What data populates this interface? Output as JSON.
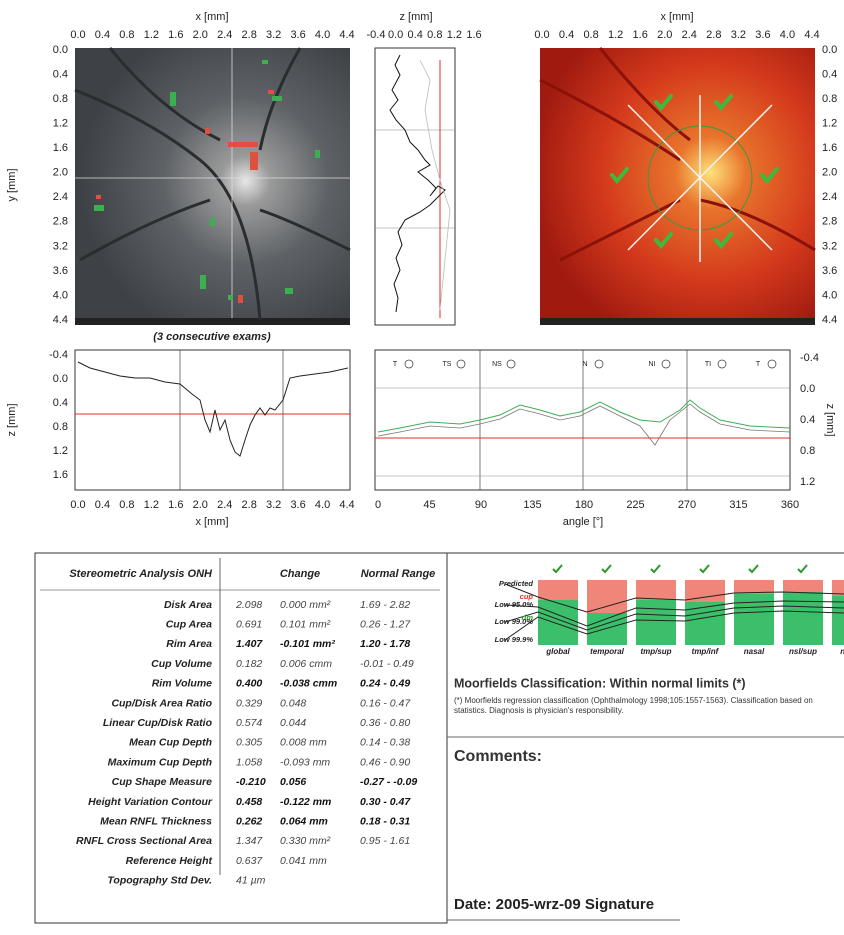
{
  "fundus_panels": {
    "x_axis_label": "x [mm]",
    "z_axis_label": "z [mm]",
    "y_axis_label": "y [mm]",
    "x_ticks": [
      "0.0",
      "0.4",
      "0.8",
      "1.2",
      "1.6",
      "2.0",
      "2.4",
      "2.8",
      "3.2",
      "3.6",
      "4.0",
      "4.4"
    ],
    "z_ticks": [
      "-0.4",
      "0.0",
      "0.4",
      "0.8",
      "1.2",
      "1.6"
    ],
    "y_ticks": [
      "0.0",
      "0.4",
      "0.8",
      "1.2",
      "1.6",
      "2.0",
      "2.4",
      "2.8",
      "3.2",
      "3.6",
      "4.0",
      "4.4"
    ],
    "caption": "(3 consecutive exams)"
  },
  "profile_plots": {
    "z_label": "z [mm]",
    "z_ticks_left": [
      "-0.4",
      "0.0",
      "0.4",
      "0.8",
      "1.2",
      "1.6"
    ],
    "x_ticks": [
      "0.0",
      "0.4",
      "0.8",
      "1.2",
      "1.6",
      "2.0",
      "2.4",
      "2.8",
      "3.2",
      "3.6",
      "4.0",
      "4.4"
    ],
    "x_label": "x [mm]",
    "angle_ticks": [
      "0",
      "45",
      "90",
      "135",
      "180",
      "225",
      "270",
      "315",
      "360"
    ],
    "angle_label": "angle [°]",
    "z_ticks_right": [
      "-0.4",
      "0.0",
      "0.4",
      "0.8",
      "1.2"
    ],
    "sectors": [
      "T",
      "TS",
      "NS",
      "N",
      "NI",
      "TI",
      "T"
    ]
  },
  "analysis_table": {
    "header": [
      "Stereometric Analysis ONH",
      "Change",
      "Normal Range"
    ],
    "rows": [
      [
        "Disk Area",
        "2.098",
        "0.000 mm²",
        "1.69 - 2.82"
      ],
      [
        "Cup Area",
        "0.691",
        "0.101 mm²",
        "0.26 - 1.27"
      ],
      [
        "Rim Area",
        "1.407",
        "-0.101 mm²",
        "1.20 - 1.78"
      ],
      [
        "Cup Volume",
        "0.182",
        "0.006 cmm",
        "-0.01 - 0.49"
      ],
      [
        "Rim Volume",
        "0.400",
        "-0.038 cmm",
        "0.24 - 0.49"
      ],
      [
        "Cup/Disk Area Ratio",
        "0.329",
        "0.048",
        "0.16 - 0.47"
      ],
      [
        "Linear Cup/Disk Ratio",
        "0.574",
        "0.044",
        "0.36 - 0.80"
      ],
      [
        "Mean Cup Depth",
        "0.305",
        "0.008 mm",
        "0.14 - 0.38"
      ],
      [
        "Maximum Cup Depth",
        "1.058",
        "-0.093 mm",
        "0.46 - 0.90"
      ],
      [
        "Cup Shape Measure",
        "-0.210",
        "0.056",
        "-0.27 - -0.09"
      ],
      [
        "Height Variation Contour",
        "0.458",
        "-0.122 mm",
        "0.30 - 0.47"
      ],
      [
        "Mean RNFL Thickness",
        "0.262",
        "0.064 mm",
        "0.18 - 0.31"
      ],
      [
        "RNFL Cross Sectional Area",
        "1.347",
        "0.330 mm²",
        "0.95 - 1.61"
      ],
      [
        "Reference Height",
        "0.637",
        "0.041 mm"
      ],
      [
        "Topography Std Dev.",
        "41 µm"
      ]
    ],
    "bold_rows": [
      2,
      4,
      9,
      10,
      11
    ]
  },
  "classification": {
    "legend": [
      "Predicted",
      "cup",
      "Low 95.0%",
      "rim",
      "Low 99.0%",
      "Low 99.9%"
    ],
    "categories": [
      "global",
      "temporal",
      "tmp/sup",
      "tmp/inf",
      "nasal",
      "nsl/sup",
      "nsl/inf"
    ],
    "title": "Moorfields Classification: Within normal limits (*)",
    "footnote": "(*) Moorfields regression classification (Ophthalmology 1998;105:1557-1563). Classification based on statistics. Diagnosis is physician's responsibility.",
    "comments": "Comments:",
    "date": "Date: 2005-wrz-09  Signature"
  }
}
